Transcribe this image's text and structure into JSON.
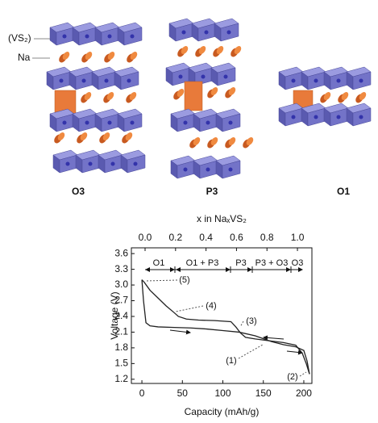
{
  "structures": {
    "labels": [
      "O3",
      "P3",
      "O1"
    ],
    "vs2_label": "(VS₂)",
    "na_label": "Na"
  },
  "chart_data": {
    "type": "line",
    "xlabel": "Capacity (mAh/g)",
    "ylabel": "Voltage (V)",
    "x2label": "x in NaₓVS₂",
    "xlim": [
      -13,
      210
    ],
    "xticks": [
      0,
      50,
      100,
      150,
      200
    ],
    "ylim": [
      1.12,
      3.71
    ],
    "yticks": [
      1.2,
      1.5,
      1.8,
      2.1,
      2.4,
      2.7,
      {
        "value": 3,
        "label": "3.0"
      },
      3.3,
      3.6
    ],
    "x2lim": [
      -0.09,
      1.095
    ],
    "x2ticks": [
      {
        "value": 0,
        "label": "0.0"
      },
      0.2,
      0.4,
      0.6,
      0.8,
      {
        "value": 1,
        "label": "1.0"
      }
    ],
    "phase_labels": [
      "O1",
      "O1 + P3",
      "P3",
      "P3 + O3",
      "O3"
    ],
    "annotations": [
      "(1)",
      "(2)",
      "(3)",
      "(4)",
      "(5)"
    ],
    "series": [
      {
        "color": "#222222",
        "x": [
          0,
          2,
          5,
          10,
          20,
          40,
          60,
          80,
          100,
          120,
          140,
          160,
          175,
          190,
          200,
          204,
          207
        ],
        "values": [
          3.1,
          2.7,
          2.28,
          2.22,
          2.2,
          2.19,
          2.18,
          2.16,
          2.13,
          2.1,
          2.03,
          1.92,
          1.86,
          1.82,
          1.75,
          1.55,
          1.3
        ]
      },
      {
        "color": "#222222",
        "x": [
          207,
          203,
          198,
          190,
          175,
          160,
          140,
          128,
          122,
          116,
          110,
          90,
          70,
          55,
          45,
          40,
          30,
          20,
          10,
          3,
          0
        ],
        "values": [
          1.3,
          1.5,
          1.7,
          1.85,
          1.9,
          1.93,
          1.97,
          2.0,
          2.08,
          2.2,
          2.3,
          2.32,
          2.33,
          2.35,
          2.4,
          2.47,
          2.6,
          2.75,
          2.9,
          3.05,
          3.1
        ]
      }
    ]
  }
}
